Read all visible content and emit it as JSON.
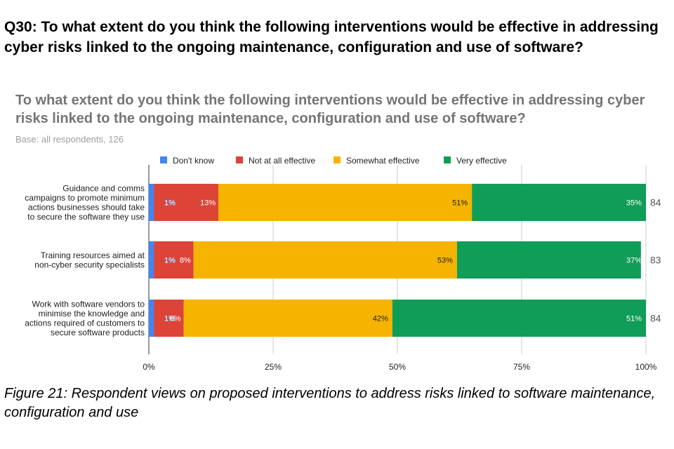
{
  "heading": "Q30: To what extent do you think the following interventions would be effective in addressing cyber risks linked to the ongoing maintenance, configuration and use of software?",
  "caption": "Figure 21: Respondent views on proposed interventions to address risks linked to software maintenance, configuration and use",
  "chart_data": {
    "type": "bar",
    "orientation": "horizontal",
    "stacked": "percent",
    "title": "To what extent do you think the following interventions would be effective in addressing cyber risks linked to the ongoing maintenance, configuration and use of software?",
    "subtitle": "Base: all respondents, 126",
    "legend_position": "top",
    "grid": true,
    "xlim": [
      0,
      100
    ],
    "x_ticks": [
      "0%",
      "25%",
      "50%",
      "75%",
      "100%"
    ],
    "categories": [
      [
        "Guidance and comms",
        "campaigns to promote minimum",
        "actions businesses should take",
        "to secure the software they use"
      ],
      [
        "Training resources aimed at",
        "non-cyber security specialists"
      ],
      [
        "Work with software vendors to",
        "minimise the knowledge and",
        "actions required of customers to",
        "secure software products"
      ]
    ],
    "series": [
      {
        "name": "Don't know",
        "color": "#4285f4",
        "values": [
          1,
          1,
          1
        ],
        "labels": [
          "1%",
          "1%",
          "1%"
        ]
      },
      {
        "name": "Not at all effective",
        "color": "#db4437",
        "values": [
          13,
          8,
          6
        ],
        "labels": [
          "13%",
          "8%",
          "6%"
        ]
      },
      {
        "name": "Somewhat effective",
        "color": "#f4b400",
        "values": [
          51,
          53,
          42
        ],
        "labels": [
          "51%",
          "53%",
          "42%"
        ]
      },
      {
        "name": "Very effective",
        "color": "#0f9d58",
        "values": [
          35,
          37,
          51
        ],
        "labels": [
          "35%",
          "37%",
          "51%"
        ]
      }
    ],
    "totals": [
      "84",
      "83",
      "84"
    ]
  }
}
